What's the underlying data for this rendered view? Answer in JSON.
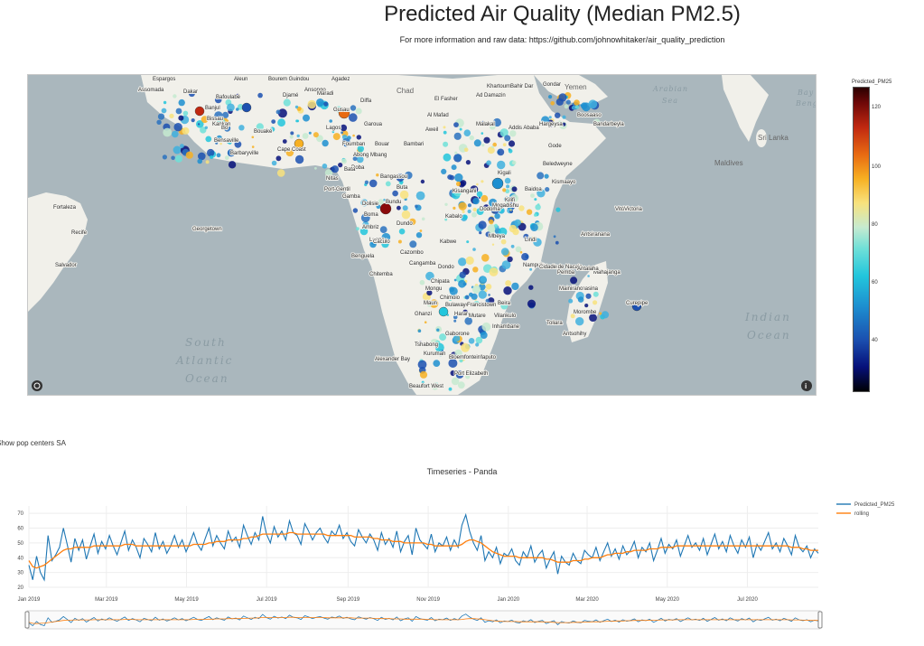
{
  "header": {
    "title": "Predicted Air Quality (Median PM2.5)",
    "subtitle": "For more information and raw data: https://github.com/johnowhitaker/air_quality_prediction"
  },
  "map": {
    "water_labels": [
      "South",
      "Atlantic",
      "Ocean",
      "Indian",
      "Ocean",
      "Arabian",
      "Sea",
      "Bay",
      "Beng"
    ],
    "countries": [
      "Chad",
      "Yemen",
      "Sri Lanka",
      "Maldives"
    ],
    "places": [
      "Espargos",
      "Assomada",
      "Dakar",
      "Bafoulabé",
      "Banjul",
      "Bissau",
      "Kankan",
      "Bo",
      "Bensaville",
      "Barbaryville",
      "Aleun",
      "Bourem Guindou",
      "Agadez",
      "Ansongo",
      "Djamé",
      "Maradi",
      "Diffa",
      "Gusau",
      "Garoua",
      "Cape Coast",
      "Bouaké",
      "Lagos",
      "Foumban",
      "Bouar",
      "Bambari",
      "Doba",
      "Abong Mbang",
      "Bata",
      "Bangassou",
      "Buta",
      "Nitas",
      "Port-Gentil",
      "Gamba",
      "Dolisie",
      "Boma",
      "Ambriz",
      "Bundu",
      "Dundo",
      "Kabalo",
      "Luena",
      "Benguela",
      "Caculo",
      "Cazombo",
      "Kabwe",
      "Chipata",
      "Cangamba",
      "Mongu",
      "Dondo",
      "Chitemba",
      "Chimoio",
      "Georgetown",
      "Fortaleza",
      "Recife",
      "Salvador",
      "Vitória",
      "El Fasher",
      "Khartoum",
      "Ad Damazin",
      "Bahir Dar",
      "Gondar",
      "Al Mafad",
      "Malakal",
      "Addis Ababa",
      "Hargeysa",
      "Boosaaso",
      "Bandarbeyla",
      "Aweil",
      "Gode",
      "Beledweyne",
      "Baidoa",
      "Kisangani",
      "Kismaayo",
      "Kilifi",
      "Mbeya",
      "Lindi",
      "Pemba",
      "Nampula",
      "Nacala",
      "Cidade de Nacala",
      "Antsiranana",
      "Mahajanga",
      "Toamasina",
      "Antalaha",
      "Mainirano",
      "Morombe",
      "Toliara",
      "Antsohihy",
      "Curepipe",
      "Bulawayo",
      "Harare",
      "Mutare",
      "Beira",
      "Maputo",
      "Inhambane",
      "Vilankulo",
      "Gaborone",
      "Tshabong",
      "Kuruman",
      "Alexander Bay",
      "Bloemfontein",
      "Port Elizabeth",
      "Beaufort West",
      "Ghanzi",
      "Maun",
      "Francistown",
      "Victoria",
      "Mogadishu",
      "Dodoma",
      "Kigali"
    ]
  },
  "colorbar": {
    "title": "Predicted_PM25",
    "ticks": [
      "120",
      "100",
      "80",
      "60",
      "40"
    ]
  },
  "pop_label": "Show pop centers SA",
  "colors": {
    "predicted": "#1f77b4",
    "rolling": "#ff7f0e"
  },
  "chart_data": {
    "type": "line",
    "title": "Timeseries - Panda",
    "xlabel": "",
    "ylabel": "",
    "ylim": [
      20,
      75
    ],
    "yticks": [
      20,
      30,
      40,
      50,
      60,
      70
    ],
    "x_ticks": [
      "Jan 2019",
      "Mar 2019",
      "May 2019",
      "Jul 2019",
      "Sep 2019",
      "Nov 2019",
      "Jan 2020",
      "Mar 2020",
      "May 2020",
      "Jul 2020"
    ],
    "x_start": "2019-01-01",
    "x_end": "2020-08-24",
    "series": [
      {
        "name": "Predicted_PM25",
        "color": "#1f77b4",
        "values": [
          35,
          25,
          41,
          30,
          25,
          55,
          38,
          42,
          47,
          60,
          49,
          37,
          53,
          45,
          52,
          39,
          48,
          56,
          43,
          51,
          46,
          55,
          48,
          42,
          50,
          58,
          45,
          52,
          47,
          40,
          53,
          49,
          44,
          57,
          46,
          51,
          43,
          48,
          55,
          47,
          52,
          44,
          50,
          57,
          49,
          45,
          53,
          60,
          48,
          55,
          50,
          46,
          58,
          51,
          54,
          47,
          62,
          55,
          49,
          57,
          52,
          68,
          56,
          50,
          61,
          54,
          58,
          52,
          65,
          57,
          55,
          49,
          63,
          58,
          52,
          57,
          60,
          54,
          50,
          58,
          55,
          62,
          53,
          57,
          51,
          48,
          59,
          54,
          50,
          56,
          52,
          45,
          57,
          49,
          53,
          47,
          58,
          44,
          51,
          55,
          42,
          60,
          52,
          49,
          46,
          56,
          44,
          50,
          48,
          54,
          45,
          52,
          47,
          62,
          69,
          58,
          50,
          45,
          55,
          38,
          44,
          40,
          47,
          36,
          43,
          41,
          46,
          38,
          35,
          44,
          40,
          48,
          37,
          42,
          45,
          33,
          39,
          44,
          29,
          41,
          37,
          35,
          43,
          38,
          36,
          45,
          42,
          40,
          47,
          38,
          44,
          50,
          41,
          46,
          39,
          48,
          42,
          45,
          51,
          40,
          47,
          44,
          50,
          38,
          45,
          53,
          43,
          49,
          46,
          52,
          41,
          48,
          55,
          47,
          50,
          45,
          53,
          42,
          49,
          56,
          46,
          51,
          44,
          55,
          48,
          43,
          52,
          47,
          54,
          40,
          49,
          45,
          51,
          57,
          46,
          50,
          44,
          53,
          48,
          42,
          55,
          47,
          44,
          48,
          40,
          46,
          43
        ]
      },
      {
        "name": "rolling",
        "color": "#ff7f0e",
        "values": [
          38,
          34,
          33,
          34,
          35,
          37,
          39,
          41,
          43,
          45,
          46,
          46,
          47,
          47,
          47,
          47,
          47,
          48,
          48,
          48,
          48,
          48,
          48,
          48,
          48,
          49,
          49,
          49,
          48,
          48,
          48,
          48,
          48,
          48,
          48,
          48,
          48,
          48,
          48,
          48,
          48,
          48,
          48,
          49,
          49,
          49,
          49,
          50,
          50,
          51,
          51,
          51,
          52,
          52,
          52,
          52,
          53,
          53,
          54,
          54,
          55,
          56,
          56,
          56,
          56,
          56,
          56,
          56,
          57,
          57,
          56,
          56,
          56,
          56,
          56,
          56,
          56,
          56,
          55,
          55,
          55,
          55,
          55,
          55,
          55,
          54,
          54,
          54,
          54,
          54,
          53,
          53,
          52,
          52,
          52,
          51,
          51,
          51,
          50,
          50,
          50,
          50,
          50,
          50,
          49,
          49,
          48,
          48,
          48,
          48,
          48,
          48,
          48,
          49,
          51,
          52,
          52,
          51,
          50,
          48,
          46,
          44,
          43,
          42,
          41,
          41,
          41,
          41,
          40,
          40,
          40,
          40,
          40,
          40,
          40,
          39,
          39,
          38,
          37,
          37,
          37,
          37,
          38,
          38,
          38,
          39,
          39,
          40,
          40,
          40,
          41,
          42,
          42,
          43,
          43,
          43,
          44,
          44,
          45,
          45,
          45,
          45,
          46,
          46,
          46,
          47,
          47,
          47,
          47,
          48,
          48,
          48,
          48,
          48,
          48,
          48,
          48,
          48,
          48,
          48,
          48,
          48,
          48,
          48,
          48,
          48,
          48,
          48,
          48,
          48,
          48,
          48,
          48,
          48,
          48,
          48,
          48,
          48,
          48,
          47,
          47,
          47,
          46,
          46,
          45,
          45,
          45
        ]
      }
    ]
  }
}
